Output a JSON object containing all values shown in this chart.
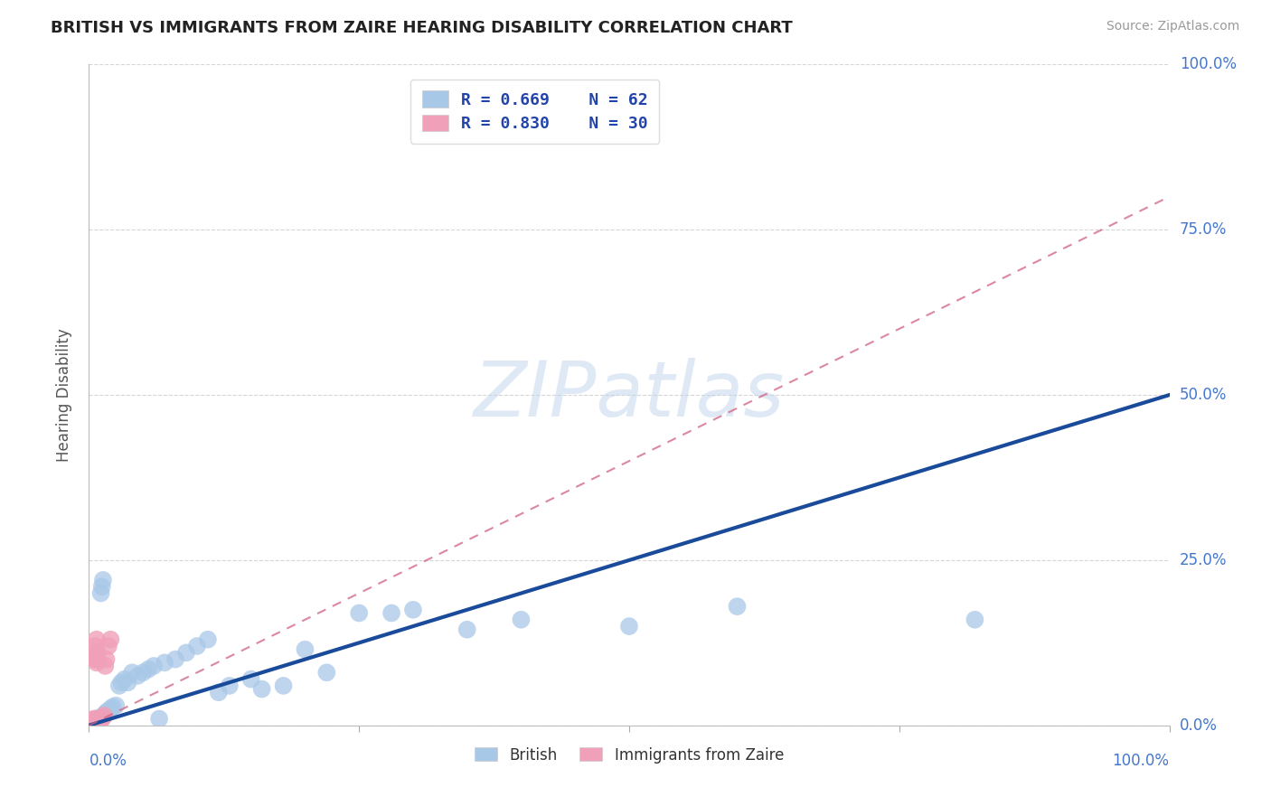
{
  "title": "BRITISH VS IMMIGRANTS FROM ZAIRE HEARING DISABILITY CORRELATION CHART",
  "source": "Source: ZipAtlas.com",
  "ylabel": "Hearing Disability",
  "xlim": [
    0,
    1.0
  ],
  "ylim": [
    0,
    1.0
  ],
  "ytick_positions": [
    0.0,
    0.25,
    0.5,
    0.75,
    1.0
  ],
  "ytick_labels": [
    "0.0%",
    "25.0%",
    "50.0%",
    "75.0%",
    "100.0%"
  ],
  "xtick_left_label": "0.0%",
  "xtick_right_label": "100.0%",
  "british_color": "#a8c8e8",
  "zaire_color": "#f0a0b8",
  "british_line_color": "#1a4a9a",
  "zaire_line_color": "#d06080",
  "legend_british_R": "R = 0.669",
  "legend_british_N": "N = 62",
  "legend_zaire_R": "R = 0.830",
  "legend_zaire_N": "N = 30",
  "legend_label_british": "British",
  "legend_label_zaire": "Immigrants from Zaire",
  "background_color": "#ffffff",
  "grid_color": "#cccccc",
  "watermark_text": "ZIPatlas",
  "british_line_x0": 0.0,
  "british_line_y0": 0.0,
  "british_line_x1": 1.0,
  "british_line_y1": 0.5,
  "zaire_line_x0": 0.0,
  "zaire_line_y0": 0.0,
  "zaire_line_x1": 1.0,
  "zaire_line_y1": 0.8,
  "british_x": [
    0.001,
    0.002,
    0.002,
    0.003,
    0.003,
    0.003,
    0.004,
    0.004,
    0.004,
    0.005,
    0.005,
    0.005,
    0.006,
    0.006,
    0.007,
    0.007,
    0.007,
    0.008,
    0.008,
    0.009,
    0.01,
    0.01,
    0.011,
    0.012,
    0.013,
    0.014,
    0.015,
    0.016,
    0.018,
    0.02,
    0.022,
    0.025,
    0.028,
    0.03,
    0.033,
    0.036,
    0.04,
    0.045,
    0.05,
    0.055,
    0.06,
    0.065,
    0.07,
    0.08,
    0.09,
    0.1,
    0.11,
    0.12,
    0.13,
    0.15,
    0.16,
    0.18,
    0.2,
    0.22,
    0.25,
    0.28,
    0.3,
    0.35,
    0.4,
    0.5,
    0.6,
    0.82
  ],
  "british_y": [
    0.002,
    0.003,
    0.004,
    0.003,
    0.005,
    0.004,
    0.004,
    0.006,
    0.005,
    0.006,
    0.005,
    0.007,
    0.006,
    0.007,
    0.007,
    0.008,
    0.006,
    0.008,
    0.009,
    0.01,
    0.01,
    0.012,
    0.2,
    0.21,
    0.22,
    0.015,
    0.017,
    0.02,
    0.022,
    0.025,
    0.028,
    0.03,
    0.06,
    0.065,
    0.07,
    0.065,
    0.08,
    0.075,
    0.08,
    0.085,
    0.09,
    0.01,
    0.095,
    0.1,
    0.11,
    0.12,
    0.13,
    0.05,
    0.06,
    0.07,
    0.055,
    0.06,
    0.115,
    0.08,
    0.17,
    0.17,
    0.175,
    0.145,
    0.16,
    0.15,
    0.18,
    0.16
  ],
  "zaire_x": [
    0.001,
    0.001,
    0.002,
    0.002,
    0.002,
    0.003,
    0.003,
    0.003,
    0.004,
    0.004,
    0.004,
    0.005,
    0.005,
    0.005,
    0.006,
    0.006,
    0.007,
    0.007,
    0.008,
    0.008,
    0.009,
    0.01,
    0.011,
    0.012,
    0.013,
    0.014,
    0.015,
    0.016,
    0.018,
    0.02
  ],
  "zaire_y": [
    0.002,
    0.003,
    0.003,
    0.004,
    0.005,
    0.005,
    0.006,
    0.007,
    0.006,
    0.008,
    0.009,
    0.008,
    0.01,
    0.1,
    0.11,
    0.12,
    0.13,
    0.095,
    0.1,
    0.11,
    0.005,
    0.006,
    0.008,
    0.01,
    0.012,
    0.015,
    0.09,
    0.1,
    0.12,
    0.13
  ]
}
